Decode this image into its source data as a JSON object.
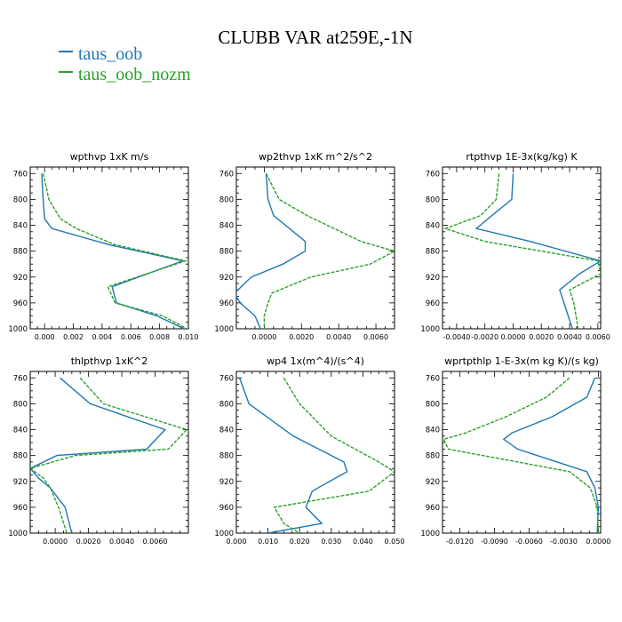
{
  "title": "CLUBB VAR at259E,-1N",
  "colors": {
    "taus_oob": "#1f77b4",
    "taus_oob_nozm": "#2ca02c"
  },
  "legend": [
    {
      "name": "taus_oob",
      "color": "#1f77b4"
    },
    {
      "name": "taus_oob_nozm",
      "color": "#2ca02c"
    }
  ],
  "chart_data": [
    {
      "type": "line",
      "title": "wpthvp   1xK  m/s",
      "y": [
        760,
        800,
        830,
        845,
        870,
        895,
        935,
        960,
        980,
        1000
      ],
      "ylim": [
        1000,
        750
      ],
      "yticks": [
        760,
        800,
        840,
        880,
        920,
        960,
        1000
      ],
      "xlim": [
        -0.001,
        0.01
      ],
      "xticks": [
        0.0,
        0.002,
        0.004,
        0.006,
        0.008,
        0.01
      ],
      "xticklabels": [
        "0.000",
        "0.002",
        "0.004",
        "0.006",
        "0.008",
        "0.010"
      ],
      "series": [
        {
          "name": "taus_oob",
          "x": [
            -0.0002,
            -0.0001,
            0.0,
            0.0005,
            0.0045,
            0.0096,
            0.0047,
            0.005,
            0.0078,
            0.0097
          ]
        },
        {
          "name": "taus_oob_nozm",
          "x": [
            -0.0001,
            0.0003,
            0.0011,
            0.0022,
            0.0049,
            0.0098,
            0.0044,
            0.0049,
            0.0082,
            0.0099
          ]
        }
      ]
    },
    {
      "type": "line",
      "title": "wp2thvp   1xK  m^2/s^2",
      "y": [
        760,
        800,
        825,
        865,
        880,
        900,
        920,
        945,
        960,
        980,
        1000
      ],
      "ylim": [
        1000,
        750
      ],
      "yticks": [
        760,
        800,
        840,
        880,
        920,
        960,
        1000
      ],
      "xlim": [
        -0.0015,
        0.007
      ],
      "xticks": [
        0.0,
        0.002,
        0.004,
        0.006
      ],
      "xticklabels": [
        "0.0000",
        "0.0020",
        "0.0040",
        "0.0060"
      ],
      "series": [
        {
          "name": "taus_oob",
          "x": [
            0.0001,
            0.0002,
            0.0005,
            0.0022,
            0.0022,
            0.001,
            -0.0007,
            -0.0016,
            -0.0013,
            -0.0005,
            -0.0002
          ]
        },
        {
          "name": "taus_oob_nozm",
          "x": [
            0.0001,
            0.0008,
            0.0023,
            0.0052,
            0.007,
            0.0057,
            0.0025,
            0.0004,
            0.0002,
            0.0,
            0.0
          ]
        }
      ]
    },
    {
      "type": "line",
      "title": "rtpthvp   1E-3x(kg/kg) K",
      "y": [
        760,
        800,
        825,
        845,
        865,
        895,
        915,
        940,
        960,
        1000
      ],
      "ylim": [
        1000,
        750
      ],
      "yticks": [
        760,
        800,
        840,
        880,
        920,
        960,
        1000
      ],
      "xlim": [
        -0.005,
        0.0062
      ],
      "xticks": [
        -0.004,
        -0.002,
        0.0,
        0.002,
        0.004,
        0.006
      ],
      "xticklabels": [
        "-0.0040",
        "-0.0020",
        "0.0000",
        "0.0020",
        "0.0040",
        "0.0060"
      ],
      "series": [
        {
          "name": "taus_oob",
          "x": [
            0.0,
            -0.0001,
            -0.0015,
            -0.0026,
            0.0012,
            0.0062,
            0.0047,
            0.0033,
            0.0036,
            0.0042
          ]
        },
        {
          "name": "taus_oob_nozm",
          "x": [
            -0.001,
            -0.0012,
            -0.0023,
            -0.0048,
            -0.002,
            0.006,
            0.0062,
            0.004,
            0.0043,
            0.0046
          ]
        }
      ]
    },
    {
      "type": "line",
      "title": "thlpthvp   1xK^2",
      "y": [
        760,
        800,
        840,
        870,
        880,
        900,
        915,
        930,
        960,
        1000
      ],
      "ylim": [
        1000,
        750
      ],
      "yticks": [
        760,
        800,
        840,
        880,
        920,
        960,
        1000
      ],
      "xlim": [
        -0.0015,
        0.008
      ],
      "xticks": [
        0.0,
        0.002,
        0.004,
        0.006
      ],
      "xticklabels": [
        "0.0000",
        "0.0020",
        "0.0040",
        "0.0060"
      ],
      "series": [
        {
          "name": "taus_oob",
          "x": [
            0.0003,
            0.0021,
            0.0066,
            0.0055,
            0.0001,
            -0.0015,
            -0.001,
            -0.0003,
            0.0006,
            0.001
          ]
        },
        {
          "name": "taus_oob_nozm",
          "x": [
            0.0015,
            0.0029,
            0.0079,
            0.0068,
            0.0012,
            -0.0015,
            -0.0007,
            -0.0003,
            0.0002,
            0.0007
          ]
        }
      ]
    },
    {
      "type": "line",
      "title": "wp4   1x(m^4)/(s^4)",
      "y": [
        760,
        800,
        850,
        890,
        905,
        935,
        960,
        985,
        1000
      ],
      "ylim": [
        1000,
        750
      ],
      "yticks": [
        760,
        800,
        840,
        880,
        920,
        960,
        1000
      ],
      "xlim": [
        0.0,
        0.05
      ],
      "xticks": [
        0.0,
        0.01,
        0.02,
        0.03,
        0.04,
        0.05
      ],
      "xticklabels": [
        "0.000",
        "0.010",
        "0.020",
        "0.030",
        "0.040",
        "0.050"
      ],
      "series": [
        {
          "name": "taus_oob",
          "x": [
            0.001,
            0.004,
            0.018,
            0.034,
            0.035,
            0.024,
            0.022,
            0.027,
            0.01
          ]
        },
        {
          "name": "taus_oob_nozm",
          "x": [
            0.015,
            0.02,
            0.03,
            0.045,
            0.05,
            0.042,
            0.012,
            0.015,
            0.02
          ]
        }
      ]
    },
    {
      "type": "line",
      "title": "wprtpthlp   1-E-3x(m kg K)/(s kg)",
      "y": [
        760,
        790,
        820,
        845,
        855,
        870,
        905,
        930,
        960,
        1000
      ],
      "ylim": [
        1000,
        750
      ],
      "yticks": [
        760,
        800,
        840,
        880,
        920,
        960,
        1000
      ],
      "xlim": [
        -0.0135,
        0.0002
      ],
      "xticks": [
        -0.012,
        -0.009,
        -0.006,
        -0.003,
        0.0
      ],
      "xticklabels": [
        "-0.0120",
        "-0.0090",
        "-0.0060",
        "-0.0030",
        "0.0000"
      ],
      "series": [
        {
          "name": "taus_oob",
          "x": [
            -0.0003,
            -0.001,
            -0.004,
            -0.0075,
            -0.0082,
            -0.007,
            -0.001,
            -0.0003,
            0.0,
            -0.0001
          ]
        },
        {
          "name": "taus_oob_nozm",
          "x": [
            -0.0025,
            -0.0045,
            -0.008,
            -0.0115,
            -0.0134,
            -0.013,
            -0.0025,
            -0.0007,
            -0.0001,
            0.0
          ]
        }
      ]
    }
  ]
}
